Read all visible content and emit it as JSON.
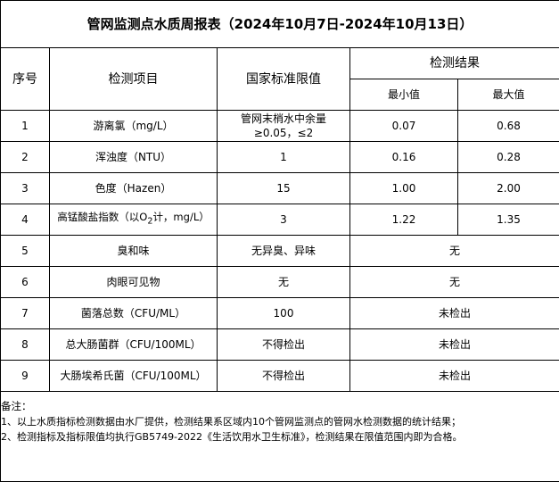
{
  "title": "管网监测点水质周报表（2024年10月7日-2024年10月13日）",
  "headers": {
    "seq": "序号",
    "item": "检测项目",
    "standard": "国家标准限值",
    "result": "检测结果",
    "min": "最小值",
    "max": "最大值"
  },
  "rows": [
    {
      "seq": "1",
      "item": "游离氯（mg/L）",
      "standard": "管网末梢水中余量≥0.05，≤2",
      "min": "0.07",
      "max": "0.68"
    },
    {
      "seq": "2",
      "item": "浑浊度（NTU）",
      "standard": "1",
      "min": "0.16",
      "max": "0.28"
    },
    {
      "seq": "3",
      "item": "色度（Hazen）",
      "standard": "15",
      "min": "1.00",
      "max": "2.00"
    },
    {
      "seq": "4",
      "item_pre": "高锰酸盐指数（以O",
      "item_sub": "2",
      "item_post": "计，mg/L）",
      "standard": "3",
      "min": "1.22",
      "max": "1.35"
    },
    {
      "seq": "5",
      "item": "臭和味",
      "standard": "无异臭、异味",
      "result": "无"
    },
    {
      "seq": "6",
      "item": "肉眼可见物",
      "standard": "无",
      "result": "无"
    },
    {
      "seq": "7",
      "item": "菌落总数（CFU/ML）",
      "standard": "100",
      "result": "未检出"
    },
    {
      "seq": "8",
      "item": "总大肠菌群（CFU/100ML）",
      "standard": "不得检出",
      "result": "未检出"
    },
    {
      "seq": "9",
      "item": "大肠埃希氏菌（CFU/100ML）",
      "standard": "不得检出",
      "result": "未检出"
    }
  ],
  "notes": {
    "label": "备注：",
    "line1": "1、以上水质指标检测数据由水厂提供，检测结果系区域内10个管网监测点的管网水检测数据的统计结果；",
    "line2": "2、检测指标及指标限值均执行GB5749-2022《生活饮用水卫生标准》，检测结果在限值范围内即为合格。"
  }
}
